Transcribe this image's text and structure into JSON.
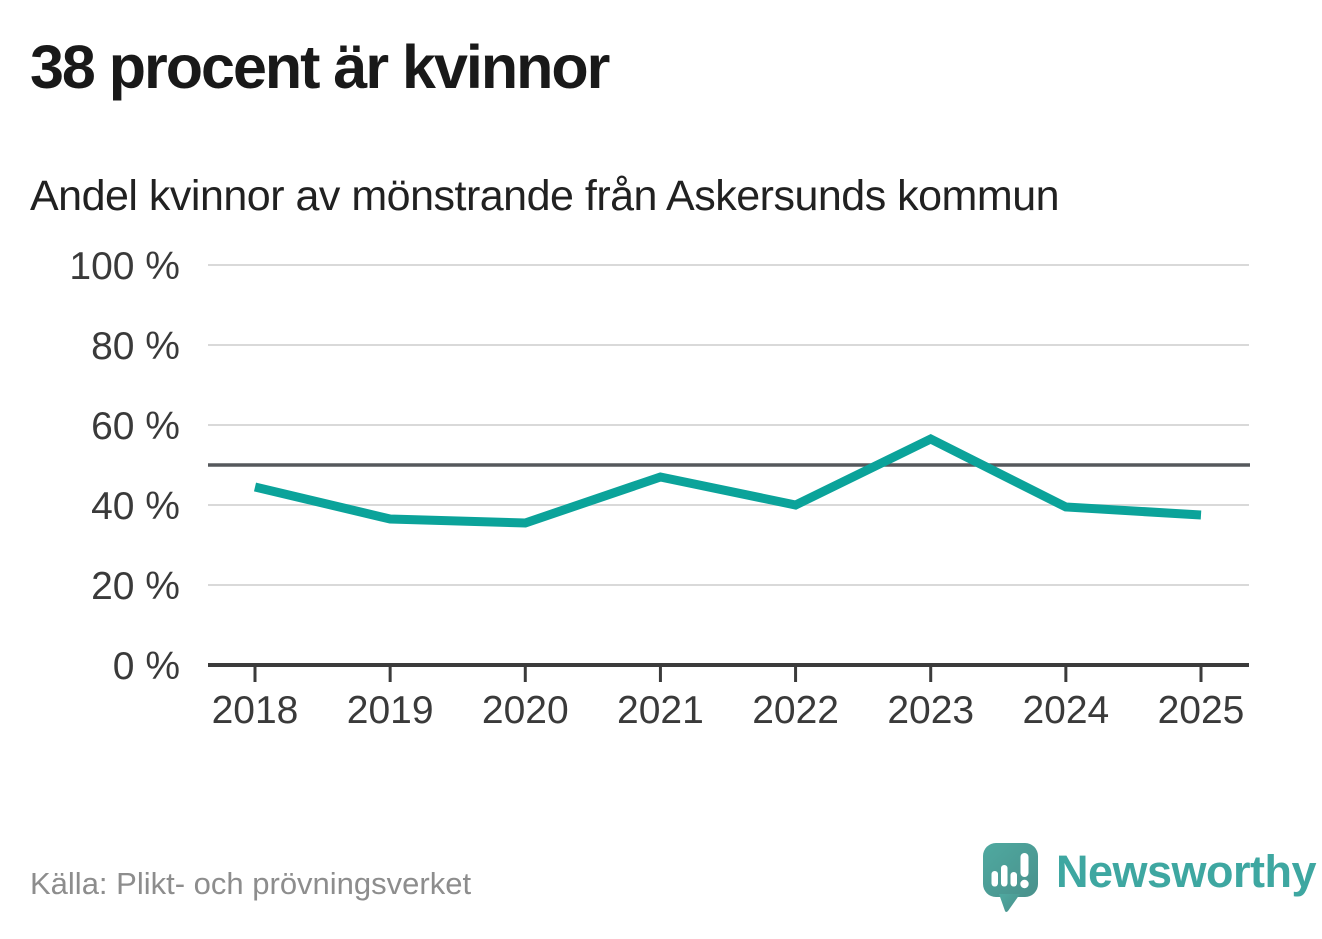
{
  "header": {
    "title": "38 procent är kvinnor",
    "subtitle": "Andel kvinnor av mönstrande från Askersunds kommun"
  },
  "chart_data": {
    "type": "line",
    "title": "38 procent är kvinnor",
    "subtitle": "Andel kvinnor av mönstrande från Askersunds kommun",
    "x": [
      "2018",
      "2019",
      "2020",
      "2021",
      "2022",
      "2023",
      "2024",
      "2025"
    ],
    "series": [
      {
        "name": "Andel kvinnor av mönstrande",
        "color": "#0ba39a",
        "values": [
          44.5,
          36.5,
          35.5,
          47,
          40,
          56.5,
          39.5,
          37.5
        ]
      }
    ],
    "xlabel": "",
    "ylabel": "",
    "ylim": [
      0,
      100
    ],
    "yticks": [
      {
        "value": 0,
        "label": "0 %"
      },
      {
        "value": 20,
        "label": "20 %"
      },
      {
        "value": 40,
        "label": "40 %"
      },
      {
        "value": 60,
        "label": "60 %"
      },
      {
        "value": 80,
        "label": "80 %"
      },
      {
        "value": 100,
        "label": "100 %"
      }
    ],
    "reference_line": {
      "value": 50,
      "color": "#55585c"
    },
    "grid": true,
    "legend": "none",
    "gridline_color": "#d9d9d9",
    "axis_color": "#3b3b3b",
    "tick_label_color": "#3a3a3a",
    "line_width": 9
  },
  "footer": {
    "source": "Källa: Plikt- och prövningsverket",
    "brand_name": "Newsworthy",
    "brand_color": "#3ea7a1"
  },
  "logo": {
    "icon": "newsworthy-speech-bubble-chart-icon",
    "bubble_gradient": [
      "#4fa9a0",
      "#49918c"
    ],
    "glyph_color": "#ffffff"
  }
}
